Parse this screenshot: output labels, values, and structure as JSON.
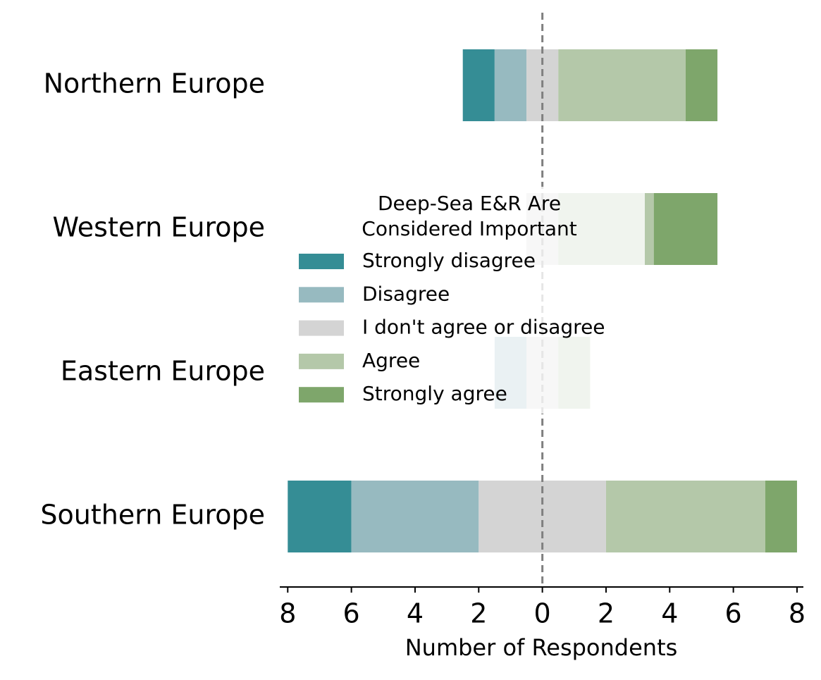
{
  "chart_data": {
    "type": "diverging_bar",
    "categories": [
      "Northern Europe",
      "Western Europe",
      "Eastern Europe",
      "Southern Europe"
    ],
    "series": [
      {
        "name": "Strongly disagree",
        "color": "#358d95",
        "values": [
          1,
          0,
          0,
          2
        ]
      },
      {
        "name": "Disagree",
        "color": "#97bac0",
        "values": [
          1,
          0,
          1,
          4
        ]
      },
      {
        "name": "I don't agree or disagree",
        "color": "#d4d4d4",
        "values": [
          1,
          1,
          1,
          4
        ]
      },
      {
        "name": "Agree",
        "color": "#b4c8a9",
        "values": [
          4,
          3,
          1,
          5
        ]
      },
      {
        "name": "Strongly agree",
        "color": "#7ea66b",
        "values": [
          1,
          2,
          0,
          1
        ]
      }
    ],
    "xlim": [
      -8.25,
      8.2
    ],
    "xticks": [
      {
        "value": -8,
        "label": "8"
      },
      {
        "value": -6,
        "label": "6"
      },
      {
        "value": -4,
        "label": "4"
      },
      {
        "value": -2,
        "label": "2"
      },
      0,
      2,
      4,
      6,
      8
    ],
    "xlabel": "Number of Respondents",
    "legend_title": [
      "Deep-Sea E&R Are",
      "Considered Important"
    ]
  }
}
